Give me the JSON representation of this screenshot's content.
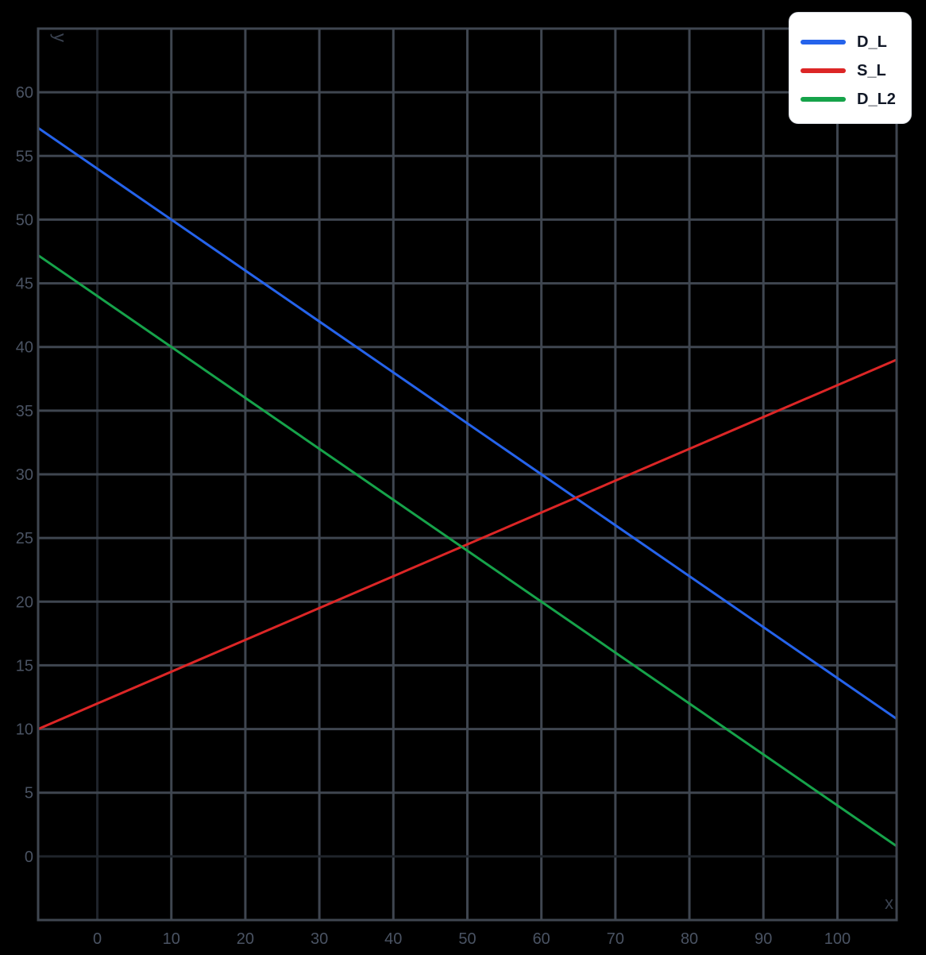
{
  "chart_data": {
    "type": "line",
    "title": "",
    "xlabel": "x",
    "ylabel": "y",
    "xlim": [
      -8,
      108
    ],
    "ylim": [
      -5,
      65
    ],
    "grid": true,
    "legend_position": "top-right",
    "x_ticks": [
      0,
      10,
      20,
      30,
      40,
      50,
      60,
      70,
      80,
      90,
      100
    ],
    "y_ticks": [
      0,
      5,
      10,
      15,
      20,
      25,
      30,
      35,
      40,
      45,
      50,
      55,
      60
    ],
    "series": [
      {
        "name": "D_L",
        "color": "#2563eb",
        "equation": "y = 54 - 0.4x",
        "x": [
          -8,
          108
        ],
        "values": [
          57.2,
          10.8
        ]
      },
      {
        "name": "S_L",
        "color": "#dc2626",
        "equation": "y = 12 + 0.25x",
        "x": [
          -8,
          108
        ],
        "values": [
          10,
          39
        ]
      },
      {
        "name": "D_L2",
        "color": "#16a34a",
        "equation": "y = 44 - 0.4x",
        "x": [
          -8,
          108
        ],
        "values": [
          47.2,
          0.8
        ]
      }
    ]
  },
  "legend": {
    "items": [
      {
        "label": "D_L",
        "color": "#2563eb"
      },
      {
        "label": "S_L",
        "color": "#dc2626"
      },
      {
        "label": "D_L2",
        "color": "#16a34a"
      }
    ]
  },
  "colors": {
    "background": "#000000",
    "grid": "#3f4650",
    "zero_line": "#1f242b",
    "tick_text": "#4a5363"
  }
}
